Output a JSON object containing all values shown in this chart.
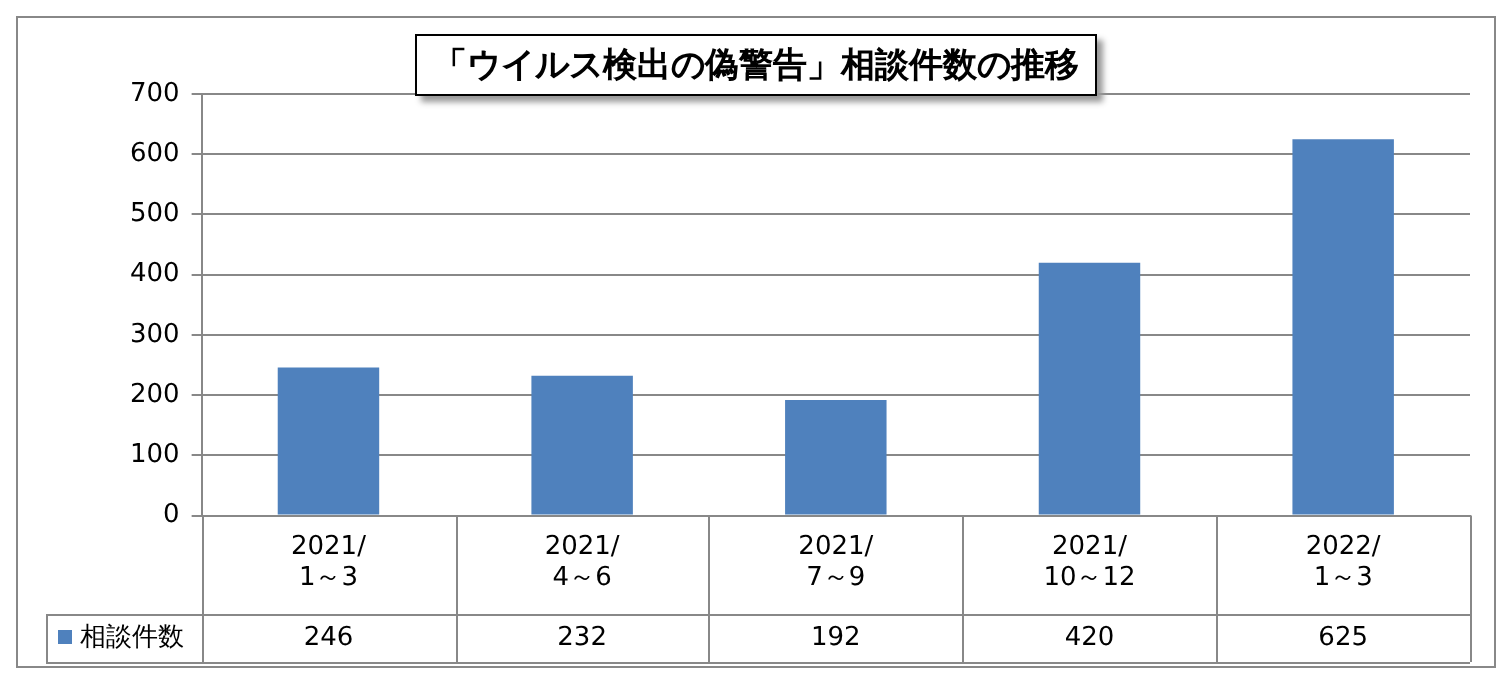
{
  "chart_data": {
    "type": "bar",
    "title": "「ウイルス検出の偽警告」相談件数の推移",
    "categories": [
      "2021/\n1～3",
      "2021/\n4～6",
      "2021/\n7～9",
      "2021/\n10～12",
      "2022/\n1～3"
    ],
    "series": [
      {
        "name": "相談件数",
        "color": "#4f81bd",
        "values": [
          246,
          232,
          192,
          420,
          625
        ]
      }
    ],
    "ylim": [
      0,
      700
    ],
    "yticks": [
      0,
      100,
      200,
      300,
      400,
      500,
      600,
      700
    ],
    "grid": "y",
    "data_labels": true
  }
}
